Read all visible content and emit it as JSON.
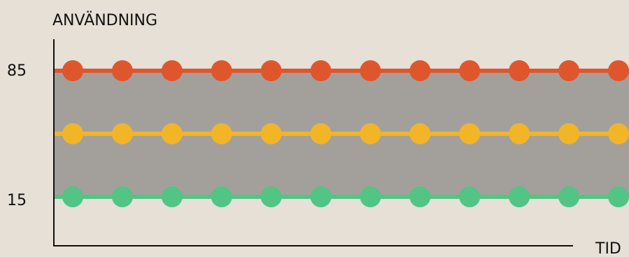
{
  "chart_data": {
    "type": "line",
    "ylabel": "ANVÄNDNING",
    "xlabel": "TID",
    "yticks": [
      85,
      15
    ],
    "ylim": [
      -38,
      100
    ],
    "x": [
      1,
      2,
      3,
      4,
      5,
      6,
      7,
      8,
      9,
      10,
      11,
      12
    ],
    "band": {
      "from": 15,
      "to": 85,
      "color": "#a3a09c"
    },
    "series": [
      {
        "values": [
          85,
          85,
          85,
          85,
          85,
          85,
          85,
          85,
          85,
          85,
          85,
          85
        ],
        "color": "#e0562c"
      },
      {
        "values": [
          50,
          50,
          50,
          50,
          50,
          50,
          50,
          50,
          50,
          50,
          50,
          50
        ],
        "color": "#f2b527"
      },
      {
        "values": [
          15,
          15,
          15,
          15,
          15,
          15,
          15,
          15,
          15,
          15,
          15,
          15
        ],
        "color": "#52c485"
      }
    ]
  }
}
